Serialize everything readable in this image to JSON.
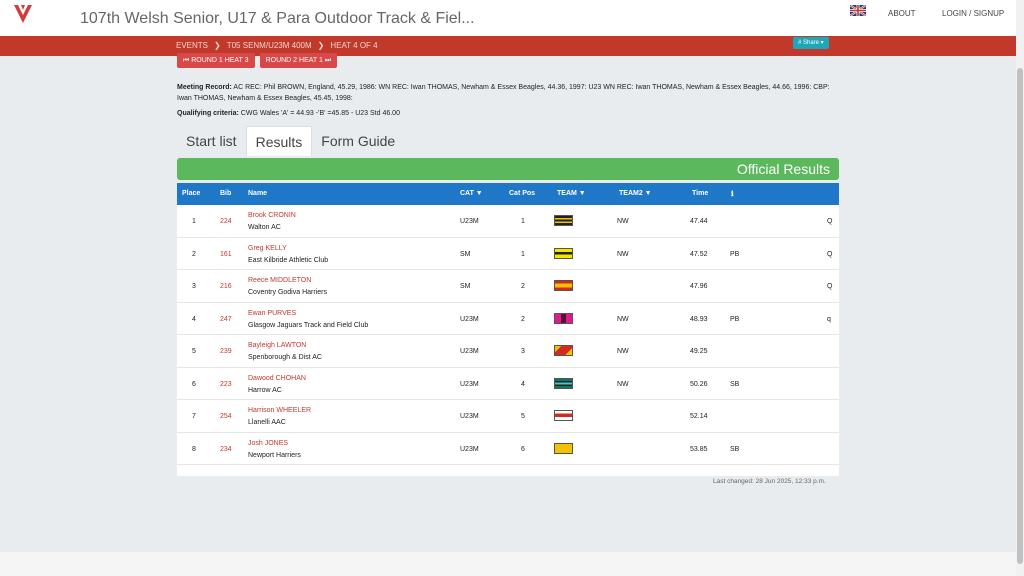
{
  "header": {
    "title": "107th Welsh Senior, U17 & Para Outdoor Track & Fiel...",
    "about": "ABOUT",
    "login": "LOGIN / SIGNUP",
    "brand_color": "#c0392b"
  },
  "breadcrumb": {
    "events": "EVENTS",
    "event": "T05 SENM/U23M 400M",
    "heat": "HEAT 4 OF 4",
    "share": "# Share ▾"
  },
  "rounds": {
    "prev": "⏮ ROUND 1 HEAT 3",
    "next": "ROUND 2 HEAT 1 ⏭"
  },
  "meeting": {
    "record_label": "Meeting Record:",
    "record_text": " AC REC: Phil BROWN, England, 45.29, 1986: WN REC: Iwan THOMAS, Newham & Essex Beagles, 44.36, 1997: U23 WN REC: Iwan THOMAS, Newham & Essex Beagles, 44.66, 1996: CBP: Iwan THOMAS, Newham & Essex Beagles, 45.45, 1998:",
    "qual_label": "Qualifying criteria:",
    "qual_text": " CWG Wales 'A' = 44.93 -'B' =45.85 - U23 Std 46.00"
  },
  "tabs": [
    "Start list",
    "Results",
    "Form Guide"
  ],
  "official": "Official Results",
  "table": {
    "headers": {
      "place": "Place",
      "bib": "Bib",
      "name": "Name",
      "cat": "CAT ▼",
      "catpos": "Cat Pos",
      "team": "TEAM ▼",
      "team2": "TEAM2 ▼",
      "time": "Time",
      "info": "ℹ"
    },
    "rows": [
      {
        "place": "1",
        "bib": "224",
        "name": "Brook CRONIN",
        "club": "Walton AC",
        "cat": "U23M",
        "catpos": "1",
        "team2": "NW",
        "time": "47.44",
        "pb": "",
        "q": "Q"
      },
      {
        "place": "2",
        "bib": "161",
        "name": "Greg KELLY",
        "club": "East Kilbride Athletic Club",
        "cat": "SM",
        "catpos": "1",
        "team2": "NW",
        "time": "47.52",
        "pb": "PB",
        "q": "Q"
      },
      {
        "place": "3",
        "bib": "216",
        "name": "Reece MIDDLETON",
        "club": "Coventry Godiva Harriers",
        "cat": "SM",
        "catpos": "2",
        "team2": "",
        "time": "47.96",
        "pb": "",
        "q": "Q"
      },
      {
        "place": "4",
        "bib": "247",
        "name": "Ewan PURVES",
        "club": "Glasgow Jaguars Track and Field Club",
        "cat": "U23M",
        "catpos": "2",
        "team2": "NW",
        "time": "48.93",
        "pb": "PB",
        "q": "q"
      },
      {
        "place": "5",
        "bib": "239",
        "name": "Bayleigh LAWTON",
        "club": "Spenborough & Dist AC",
        "cat": "U23M",
        "catpos": "3",
        "team2": "NW",
        "time": "49.25",
        "pb": "",
        "q": ""
      },
      {
        "place": "6",
        "bib": "223",
        "name": "Dawood CHOHAN",
        "club": "Harrow AC",
        "cat": "U23M",
        "catpos": "4",
        "team2": "NW",
        "time": "50.26",
        "pb": "SB",
        "q": ""
      },
      {
        "place": "7",
        "bib": "254",
        "name": "Harrison WHEELER",
        "club": "Llanelli AAC",
        "cat": "U23M",
        "catpos": "5",
        "team2": "",
        "time": "52.14",
        "pb": "",
        "q": ""
      },
      {
        "place": "8",
        "bib": "234",
        "name": "Josh JONES",
        "club": "Newport Harriers",
        "cat": "U23M",
        "catpos": "6",
        "team2": "",
        "time": "53.85",
        "pb": "SB",
        "q": ""
      }
    ]
  },
  "last_changed": "Last changed: 28 Jun 2025, 12:33 p.m."
}
